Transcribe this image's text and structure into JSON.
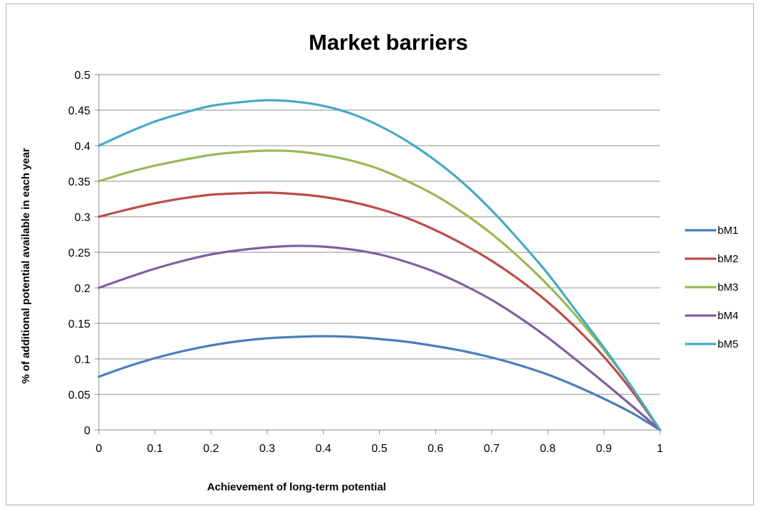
{
  "chart_data": {
    "type": "line",
    "title": "Market barriers",
    "xlabel": "Achievement of long-term potential",
    "ylabel": "% of additional potential available  in each year",
    "xlim": [
      0,
      1
    ],
    "ylim": [
      0,
      0.5
    ],
    "x_ticks": [
      "0",
      "0.1",
      "0.2",
      "0.3",
      "0.4",
      "0.5",
      "0.6",
      "0.7",
      "0.8",
      "0.9",
      "1"
    ],
    "y_ticks": [
      "0",
      "0.05",
      "0.1",
      "0.15",
      "0.2",
      "0.25",
      "0.3",
      "0.35",
      "0.4",
      "0.45",
      "0.5"
    ],
    "grid": "horizontal",
    "legend_position": "right",
    "x": [
      0,
      0.05,
      0.1,
      0.15,
      0.2,
      0.25,
      0.3,
      0.35,
      0.4,
      0.45,
      0.5,
      0.55,
      0.6,
      0.65,
      0.7,
      0.75,
      0.8,
      0.85,
      0.9,
      0.95,
      1
    ],
    "series": [
      {
        "name": "bM1",
        "color": "#4a7ebb",
        "values": [
          0.075,
          0.089,
          0.101,
          0.111,
          0.119,
          0.125,
          0.129,
          0.131,
          0.132,
          0.131,
          0.128,
          0.124,
          0.118,
          0.111,
          0.102,
          0.091,
          0.078,
          0.062,
          0.044,
          0.024,
          0
        ]
      },
      {
        "name": "bM2",
        "color": "#be4b48",
        "values": [
          0.3,
          0.31,
          0.319,
          0.326,
          0.331,
          0.333,
          0.334,
          0.332,
          0.328,
          0.321,
          0.311,
          0.298,
          0.281,
          0.261,
          0.238,
          0.211,
          0.18,
          0.144,
          0.103,
          0.055,
          0
        ]
      },
      {
        "name": "bM3",
        "color": "#98b954",
        "values": [
          0.35,
          0.362,
          0.372,
          0.38,
          0.387,
          0.391,
          0.393,
          0.392,
          0.387,
          0.379,
          0.367,
          0.35,
          0.33,
          0.305,
          0.276,
          0.242,
          0.204,
          0.161,
          0.113,
          0.06,
          0
        ]
      },
      {
        "name": "bM4",
        "color": "#7d60a0",
        "values": [
          0.2,
          0.214,
          0.227,
          0.238,
          0.247,
          0.253,
          0.257,
          0.259,
          0.258,
          0.254,
          0.247,
          0.236,
          0.222,
          0.204,
          0.183,
          0.158,
          0.13,
          0.099,
          0.067,
          0.034,
          0
        ]
      },
      {
        "name": "bM5",
        "color": "#46aac5",
        "values": [
          0.4,
          0.418,
          0.434,
          0.446,
          0.456,
          0.461,
          0.464,
          0.462,
          0.456,
          0.445,
          0.428,
          0.406,
          0.379,
          0.347,
          0.309,
          0.266,
          0.22,
          0.168,
          0.116,
          0.06,
          0
        ]
      }
    ]
  }
}
